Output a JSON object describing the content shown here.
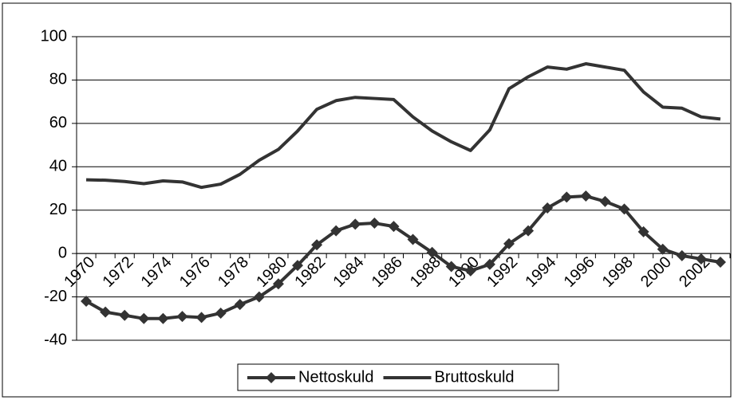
{
  "chart_data": {
    "type": "line",
    "categories": [
      "1970",
      null,
      "1972",
      null,
      "1974",
      null,
      "1976",
      null,
      "1978",
      null,
      "1980",
      null,
      "1982",
      null,
      "1984",
      null,
      "1986",
      null,
      "1988",
      null,
      "1990",
      null,
      "1992",
      null,
      "1994",
      null,
      "1996",
      null,
      "1998",
      null,
      "2000",
      null,
      "2002",
      null
    ],
    "series": [
      {
        "name": "Nettoskuld",
        "color": "#333333",
        "marker": "diamond",
        "values": [
          -22,
          -27,
          -28.5,
          -30,
          -30,
          -29,
          -29.5,
          -27.5,
          -23.5,
          -20,
          -14,
          -5.5,
          4,
          10.5,
          13.5,
          14,
          12.5,
          6.5,
          0.5,
          -6,
          -8,
          -5,
          4.5,
          10.5,
          21,
          26,
          26.5,
          24,
          20.5,
          10,
          2,
          -1,
          -2.5,
          -4
        ]
      },
      {
        "name": "Bruttoskuld",
        "color": "#333333",
        "values": [
          34,
          33.8,
          33.2,
          32.2,
          33.5,
          33,
          30.5,
          32,
          36.5,
          43,
          48,
          56.5,
          66.5,
          70.5,
          72,
          71.5,
          71,
          63,
          56.5,
          51.5,
          47.5,
          57,
          76,
          81.5,
          86,
          85,
          87.5,
          86,
          84.5,
          74.5,
          67.5,
          67,
          63,
          62
        ]
      }
    ],
    "ylim": [
      -40,
      100
    ],
    "yticks": [
      -40,
      -20,
      0,
      20,
      40,
      60,
      80,
      100
    ],
    "grid": true,
    "legend": "bottom"
  }
}
